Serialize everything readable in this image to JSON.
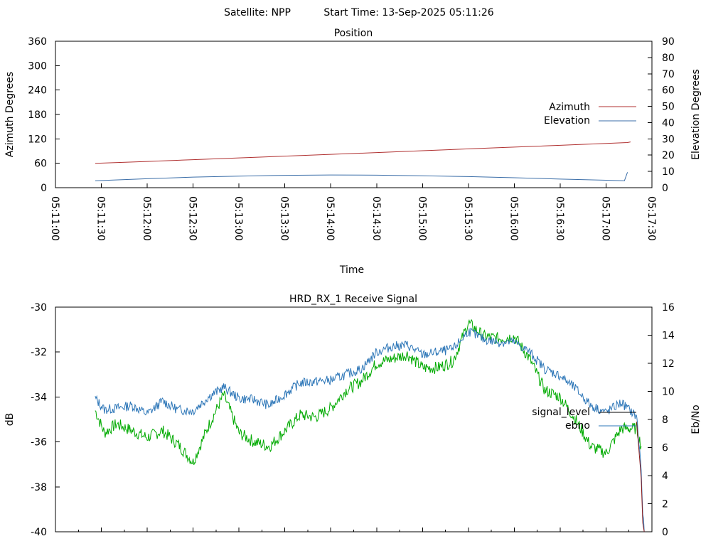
{
  "header": {
    "satellite": "Satellite: NPP",
    "start_time": "Start Time: 13-Sep-2025 05:11:26"
  },
  "colors": {
    "azimuth": "#b03030",
    "elevation": "#3b6ea8",
    "signal_level": "#000000",
    "ebno": "#2e77b8",
    "signal_trace": "#00aa00"
  },
  "chart_data": [
    {
      "type": "line",
      "title": "Position",
      "xlabel": "Time",
      "ylabel": "Azimuth Degrees",
      "y2label": "Elevation Degrees",
      "xlim": [
        "05:11:00",
        "05:17:30"
      ],
      "x_ticks": [
        "05:11:00",
        "05:11:30",
        "05:12:00",
        "05:12:30",
        "05:13:00",
        "05:13:30",
        "05:14:00",
        "05:14:30",
        "05:15:00",
        "05:15:30",
        "05:16:00",
        "05:16:30",
        "05:17:00",
        "05:17:30"
      ],
      "ylim": [
        0,
        360
      ],
      "y_ticks": [
        "0",
        "60",
        "120",
        "180",
        "240",
        "300",
        "360"
      ],
      "y2lim": [
        0,
        90
      ],
      "y2_ticks": [
        "0",
        "10",
        "20",
        "30",
        "40",
        "50",
        "60",
        "70",
        "80",
        "90"
      ],
      "legend_placement": "right",
      "grid": false,
      "series": [
        {
          "name": "Azimuth",
          "axis": "left",
          "x": [
            "05:11:26",
            "05:12:00",
            "05:12:30",
            "05:13:00",
            "05:13:30",
            "05:14:00",
            "05:14:30",
            "05:15:00",
            "05:15:30",
            "05:16:00",
            "05:16:30",
            "05:17:00",
            "05:17:14",
            "05:17:16"
          ],
          "values": [
            60,
            64.5,
            68.8,
            73.2,
            77.6,
            82,
            86.4,
            90.9,
            95.4,
            99.8,
            104.2,
            108.7,
            111,
            112.5
          ]
        },
        {
          "name": "Elevation",
          "axis": "right",
          "x": [
            "05:11:26",
            "05:12:00",
            "05:12:30",
            "05:13:00",
            "05:13:30",
            "05:14:00",
            "05:14:30",
            "05:15:00",
            "05:15:30",
            "05:16:00",
            "05:16:30",
            "05:17:00",
            "05:17:12",
            "05:17:14"
          ],
          "values": [
            4.3,
            5.5,
            6.5,
            7.1,
            7.6,
            7.8,
            7.7,
            7.3,
            6.8,
            6.1,
            5.3,
            4.6,
            4.3,
            9.5
          ]
        }
      ]
    },
    {
      "type": "line",
      "title": "HRD_RX_1 Receive Signal",
      "ylabel": "dB",
      "y2label": "Eb/No",
      "xlim": [
        "05:11:00",
        "05:17:30"
      ],
      "x_tick_count": 14,
      "ylim": [
        -40,
        -30
      ],
      "y_ticks": [
        "-40",
        "-38",
        "-36",
        "-34",
        "-32",
        "-30"
      ],
      "y2lim": [
        0,
        16
      ],
      "y2_ticks": [
        "0",
        "2",
        "4",
        "6",
        "8",
        "10",
        "12",
        "14",
        "16"
      ],
      "legend_placement": "right",
      "grid": false,
      "series": [
        {
          "name": "signal_level",
          "axis": "left",
          "x_seconds_from_05_11_00": [
            26,
            32,
            40,
            50,
            60,
            70,
            80,
            90,
            100,
            110,
            120,
            130,
            140,
            150,
            160,
            170,
            180,
            190,
            200,
            210,
            220,
            230,
            240,
            250,
            260,
            270,
            280,
            290,
            300,
            310,
            320,
            330,
            340,
            350,
            360,
            370,
            380,
            383,
            384,
            385
          ],
          "values": [
            -34.2,
            -35.1,
            -35.0,
            -35.4,
            -35.6,
            -35.2,
            -35.8,
            -36.9,
            -34.8,
            -33.6,
            -35.2,
            -35.8,
            -36.1,
            -35.2,
            -34.5,
            -34.6,
            -34.2,
            -33.6,
            -33.2,
            -32.4,
            -32.1,
            -31.8,
            -32.5,
            -32.4,
            -32.2,
            -30.6,
            -31.2,
            -31.4,
            -31.5,
            -32.1,
            -33.6,
            -33.8,
            -34.4,
            -35.7,
            -36.3,
            -35.2,
            -35.1,
            -37.6,
            -39.6,
            -40.0
          ]
        },
        {
          "name": "ebno",
          "axis": "right",
          "x_seconds_from_05_11_00": [
            26,
            32,
            40,
            50,
            60,
            70,
            80,
            90,
            100,
            110,
            120,
            130,
            140,
            150,
            160,
            170,
            180,
            190,
            200,
            210,
            220,
            230,
            240,
            250,
            260,
            270,
            280,
            290,
            300,
            310,
            320,
            330,
            340,
            350,
            360,
            370,
            380,
            383,
            384,
            385
          ],
          "values": [
            9.5,
            8.7,
            8.8,
            9.0,
            8.4,
            9.3,
            8.7,
            8.6,
            9.6,
            10.3,
            9.5,
            9.4,
            9.0,
            9.8,
            10.6,
            10.7,
            10.8,
            11.2,
            11.6,
            12.8,
            13.2,
            13.3,
            12.6,
            12.8,
            13.0,
            14.3,
            13.7,
            13.5,
            13.5,
            12.8,
            11.6,
            11.1,
            10.2,
            9.0,
            8.5,
            9.2,
            8.2,
            4.5,
            1.2,
            0.0
          ]
        },
        {
          "name": "",
          "role": "signal_trace",
          "axis": "left",
          "x_seconds_from_05_11_00": [
            26,
            32,
            40,
            50,
            60,
            70,
            80,
            90,
            100,
            110,
            120,
            130,
            140,
            150,
            160,
            170,
            180,
            190,
            200,
            210,
            220,
            230,
            240,
            250,
            260,
            270,
            280,
            290,
            300,
            310,
            320,
            330,
            340,
            350,
            360,
            370,
            380,
            383
          ],
          "values": [
            -34.6,
            -35.6,
            -35.2,
            -35.5,
            -35.8,
            -35.5,
            -36.1,
            -36.9,
            -35.3,
            -33.9,
            -35.6,
            -36.0,
            -36.2,
            -35.5,
            -34.8,
            -34.9,
            -34.5,
            -33.7,
            -33.3,
            -32.5,
            -32.3,
            -32.1,
            -32.7,
            -32.7,
            -32.4,
            -30.7,
            -31.3,
            -31.4,
            -31.3,
            -32.3,
            -33.7,
            -34.0,
            -35.0,
            -36.2,
            -36.5,
            -35.4,
            -35.4,
            -36.2
          ]
        }
      ]
    }
  ]
}
